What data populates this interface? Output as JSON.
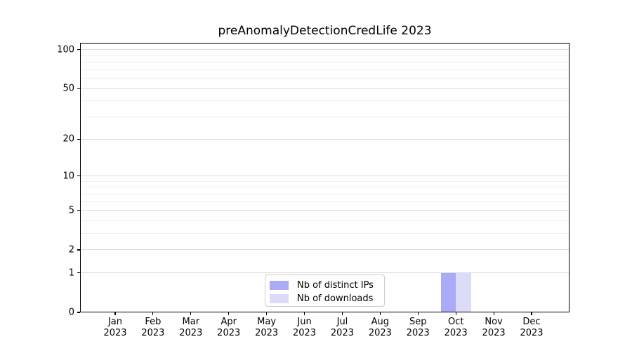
{
  "title": "preAnomalyDetectionCredLife 2023",
  "chart_data": {
    "type": "bar",
    "title": "preAnomalyDetectionCredLife 2023",
    "categories": [
      "Jan 2023",
      "Feb 2023",
      "Mar 2023",
      "Apr 2023",
      "May 2023",
      "Jun 2023",
      "Jul 2023",
      "Aug 2023",
      "Sep 2023",
      "Oct 2023",
      "Nov 2023",
      "Dec 2023"
    ],
    "months": [
      "Jan",
      "Feb",
      "Mar",
      "Apr",
      "May",
      "Jun",
      "Jul",
      "Aug",
      "Sep",
      "Oct",
      "Nov",
      "Dec"
    ],
    "x_tick_year": "2023",
    "series": [
      {
        "name": "Nb of distinct IPs",
        "color": "#aaaaf6",
        "values": [
          0,
          0,
          0,
          0,
          0,
          0,
          0,
          0,
          0,
          1,
          0,
          0
        ]
      },
      {
        "name": "Nb of downloads",
        "color": "#dcdcf8",
        "values": [
          0,
          0,
          0,
          0,
          0,
          0,
          0,
          0,
          0,
          1,
          0,
          0
        ]
      }
    ],
    "xlabel": "",
    "ylabel": "",
    "yscale": "log1p",
    "ylim": [
      0,
      113
    ],
    "yticks_major": [
      0,
      1,
      2,
      5,
      10,
      20,
      50,
      100
    ],
    "yticks_minor": [
      3,
      4,
      6,
      7,
      8,
      9,
      30,
      40,
      60,
      70,
      80,
      90
    ],
    "grid": "horizontal",
    "legend_position": "lower-center-inside"
  },
  "legend": {
    "items": [
      {
        "label": "Nb of distinct IPs",
        "color": "#aaaaf6"
      },
      {
        "label": "Nb of downloads",
        "color": "#dcdcf8"
      }
    ]
  },
  "colors": {
    "background": "#ffffff",
    "grid_major": "#dcdcdc",
    "grid_minor": "#efefef",
    "spine": "#000000",
    "text": "#000000",
    "legend_border": "#cccccc"
  }
}
